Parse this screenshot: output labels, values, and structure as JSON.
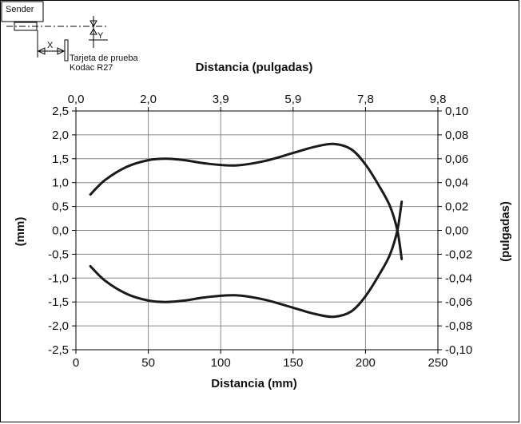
{
  "chart_data": {
    "type": "line",
    "title": "",
    "xlabel": "Distancia (mm)",
    "x2label": "Distancia (pulgadas)",
    "ylabel": "(mm)",
    "y2label": "(pulgadas)",
    "xlim": [
      0,
      250
    ],
    "ylim": [
      -2.5,
      2.5
    ],
    "y2lim": [
      -0.1,
      0.1
    ],
    "x_ticks": [
      "0",
      "50",
      "100",
      "150",
      "200",
      "250"
    ],
    "x_ticks_values": [
      0,
      50,
      100,
      150,
      200,
      250
    ],
    "x2_ticks": [
      "0,0",
      "2,0",
      "3,9",
      "5,9",
      "7,8",
      "9,8"
    ],
    "y_ticks": [
      "2,5",
      "2,0",
      "1,5",
      "1,0",
      "0,5",
      "0,0",
      "-0,5",
      "-1,0",
      "-1,5",
      "-2,0",
      "-2,5"
    ],
    "y_ticks_values": [
      2.5,
      2.0,
      1.5,
      1.0,
      0.5,
      0.0,
      -0.5,
      -1.0,
      -1.5,
      -2.0,
      -2.5
    ],
    "y2_ticks": [
      "0,10",
      "0,08",
      "0,06",
      "0,04",
      "0,02",
      "0,00",
      "-0,02",
      "-0,04",
      "-0,06",
      "-0,08",
      "-0,10"
    ],
    "grid": true,
    "series": [
      {
        "x": [
          10,
          20,
          35,
          50,
          62,
          75,
          90,
          110,
          130,
          150,
          165,
          178,
          190,
          200,
          210,
          217,
          222,
          225
        ],
        "y": [
          0.75,
          1.05,
          1.33,
          1.47,
          1.5,
          1.47,
          1.4,
          1.36,
          1.45,
          1.62,
          1.75,
          1.81,
          1.7,
          1.38,
          0.9,
          0.5,
          0.0,
          -0.6
        ]
      },
      {
        "x": [
          10,
          20,
          35,
          50,
          62,
          75,
          90,
          110,
          130,
          150,
          165,
          178,
          190,
          200,
          210,
          217,
          222,
          225
        ],
        "y": [
          -0.75,
          -1.05,
          -1.33,
          -1.47,
          -1.5,
          -1.47,
          -1.4,
          -1.36,
          -1.45,
          -1.62,
          -1.75,
          -1.81,
          -1.7,
          -1.38,
          -0.9,
          -0.5,
          0.0,
          0.6
        ]
      }
    ]
  },
  "inset": {
    "sender_label": "Sender",
    "x_label": "X",
    "y_label": "Y",
    "target_line1": "Tarjeta de prueba",
    "target_line2": "Kodac R27"
  }
}
